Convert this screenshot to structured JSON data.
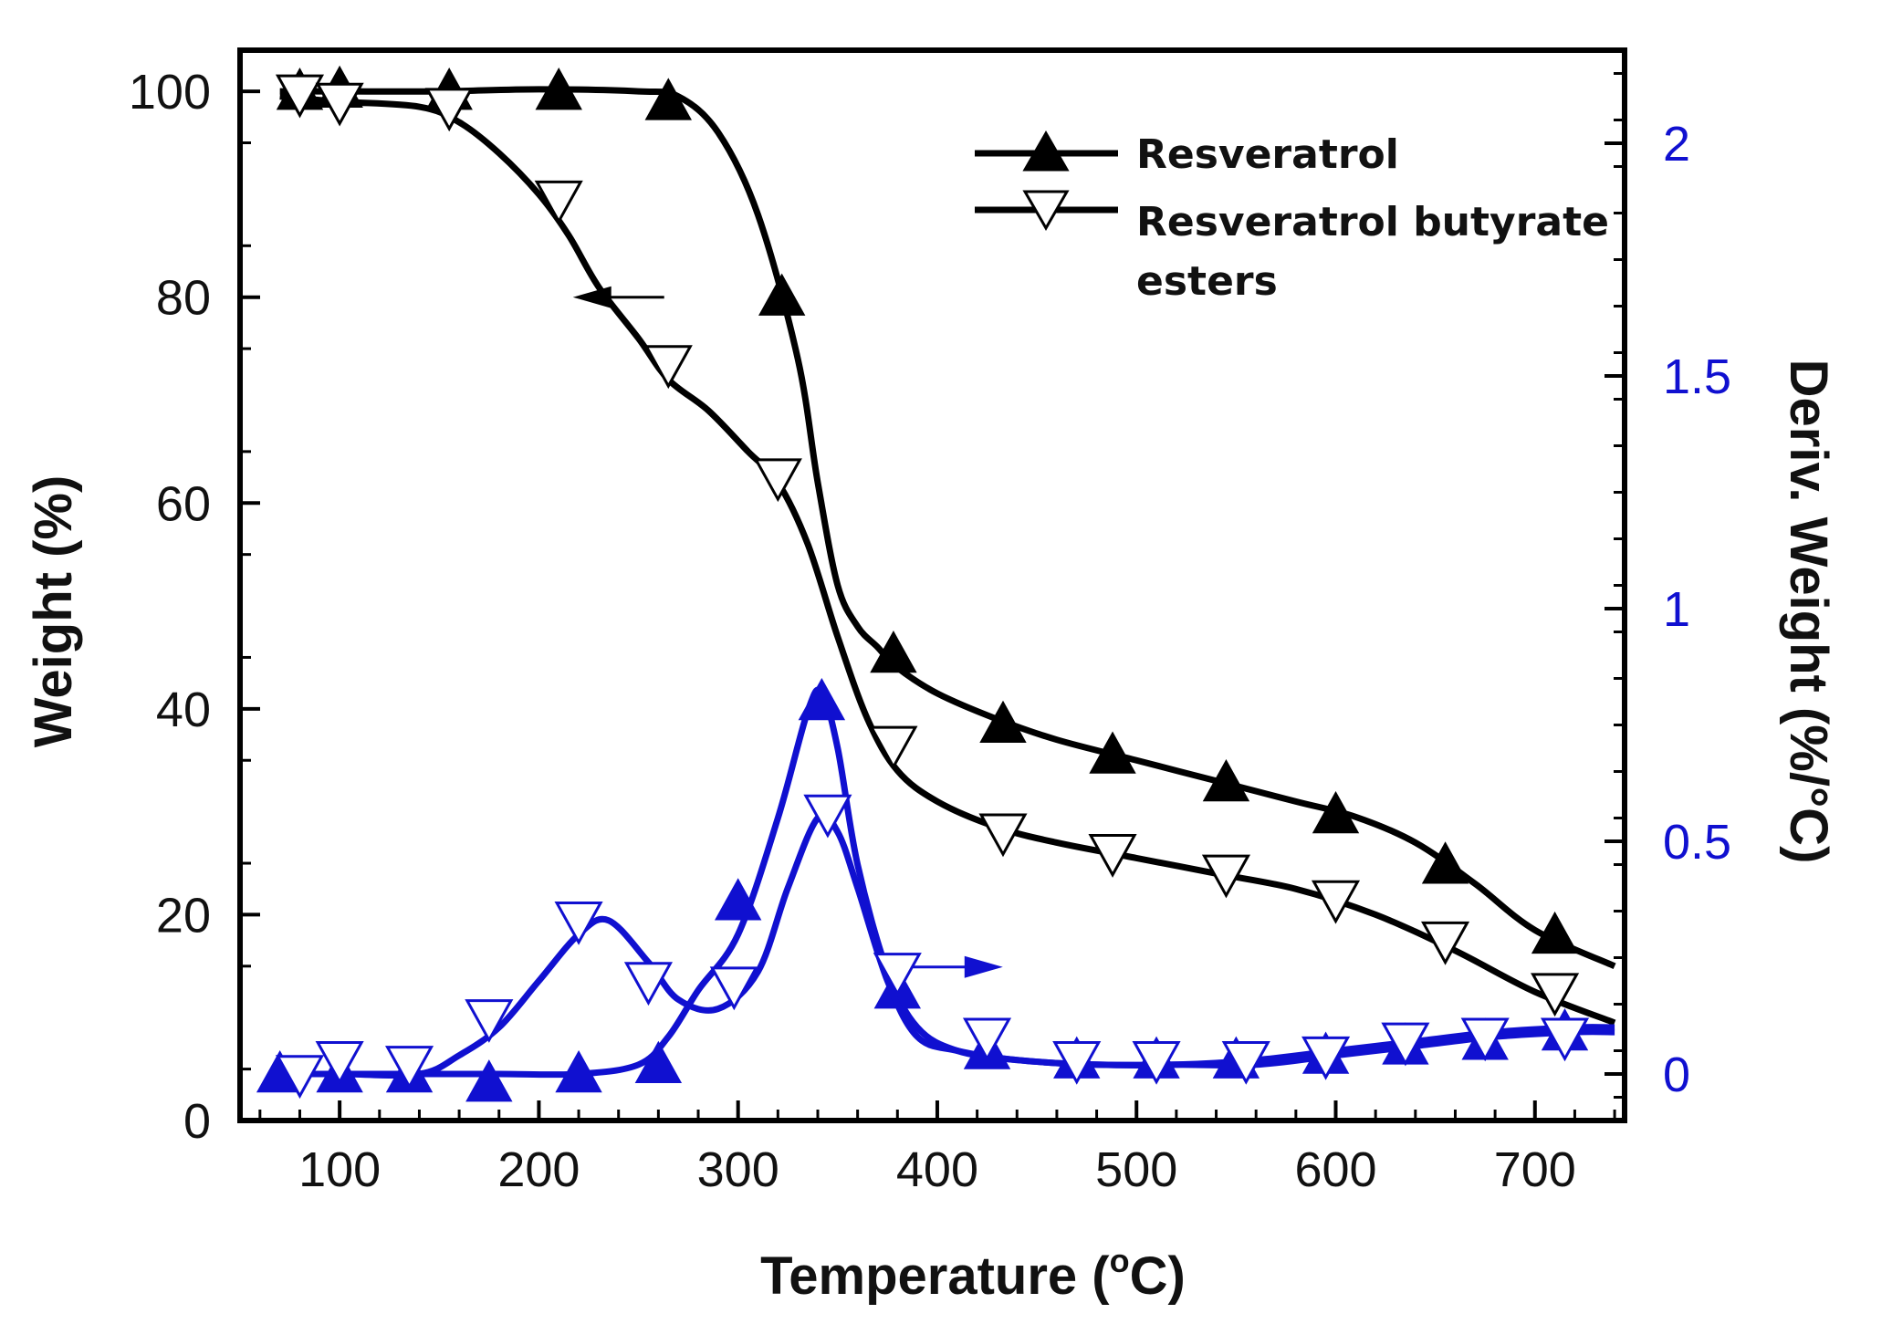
{
  "chart_data": {
    "type": "line",
    "title": "",
    "xlabel_prefix": "Temperature (",
    "xlabel_sup": "o",
    "xlabel_suffix": "C)",
    "ylabel": "Weight (%)",
    "y2label": "Deriv. Weight (%/°C)",
    "xlim": [
      50,
      745
    ],
    "ylim": [
      0,
      104
    ],
    "y2lim": [
      -0.1,
      2.2
    ],
    "xticks": [
      100,
      200,
      300,
      400,
      500,
      600,
      700
    ],
    "yticks": [
      0,
      20,
      40,
      60,
      80,
      100
    ],
    "y2ticks": [
      0,
      0.5,
      1,
      1.5,
      2
    ],
    "y2tick_labels": [
      "0",
      "0.5",
      "1",
      "1.5",
      "2"
    ],
    "grid": false,
    "legend_position": "top-right",
    "colors": {
      "weight": "#000000",
      "deriv": "#1010d0"
    },
    "legend": [
      {
        "label": "Resveratrol",
        "marker": "triangle-up-filled"
      },
      {
        "label_line1": "Resveratrol butyrate",
        "label_line2": "esters",
        "marker": "triangle-down-open"
      }
    ],
    "annotations": [
      {
        "type": "arrow",
        "direction": "left",
        "points_to_axis": "left",
        "at": [
          240,
          80
        ]
      },
      {
        "type": "arrow",
        "direction": "right",
        "points_to_axis": "right",
        "at": [
          410,
          0.23
        ]
      }
    ],
    "series": [
      {
        "name": "Resveratrol",
        "axis": "left",
        "marker": "triangle-up-filled",
        "x": [
          70,
          100,
          150,
          200,
          250,
          270,
          290,
          310,
          330,
          340,
          350,
          360,
          370,
          380,
          400,
          430,
          460,
          500,
          540,
          580,
          610,
          640,
          670,
          700,
          740
        ],
        "y": [
          100,
          100,
          100,
          100.2,
          100,
          99.5,
          96,
          88,
          74,
          62,
          52,
          48,
          46,
          44,
          41.5,
          39,
          37,
          35,
          33,
          31,
          29.5,
          27,
          23,
          18.5,
          15
        ],
        "marker_x": [
          80,
          100,
          155,
          210,
          265,
          322,
          378,
          433,
          488,
          545,
          600,
          655,
          710
        ],
        "marker_y": [
          100,
          100.2,
          100,
          100,
          99,
          80,
          45.3,
          38.5,
          35.5,
          32.8,
          29.7,
          24.8,
          18
        ]
      },
      {
        "name": "Resveratrol butyrate esters",
        "axis": "left",
        "marker": "triangle-down-open",
        "x": [
          70,
          100,
          140,
          160,
          180,
          200,
          215,
          230,
          250,
          265,
          285,
          305,
          320,
          335,
          350,
          365,
          380,
          400,
          430,
          460,
          500,
          540,
          580,
          620,
          660,
          700,
          740
        ],
        "y": [
          99.5,
          99,
          98.5,
          97,
          94,
          90,
          86,
          81,
          76,
          72,
          69,
          65,
          62,
          56,
          47,
          39,
          34,
          31,
          28.5,
          27,
          25.5,
          24,
          22.5,
          20,
          16.5,
          12.5,
          9.5
        ],
        "marker_x": [
          80,
          100,
          155,
          210,
          265,
          320,
          378,
          433,
          488,
          545,
          600,
          655,
          710
        ],
        "marker_y": [
          99.8,
          99,
          98.5,
          89.5,
          73.5,
          62.5,
          36.5,
          28,
          26,
          24,
          21.5,
          17.5,
          12.5
        ]
      },
      {
        "name": "Resveratrol (derivative)",
        "axis": "right",
        "marker": "triangle-up-filled",
        "x": [
          70,
          100,
          140,
          180,
          220,
          250,
          265,
          280,
          300,
          320,
          335,
          342,
          350,
          360,
          375,
          390,
          410,
          440,
          480,
          520,
          560,
          600,
          640,
          680,
          720,
          740
        ],
        "y": [
          0,
          0,
          0,
          0,
          0,
          0.02,
          0.08,
          0.18,
          0.3,
          0.55,
          0.78,
          0.82,
          0.7,
          0.45,
          0.22,
          0.1,
          0.05,
          0.03,
          0.02,
          0.02,
          0.03,
          0.05,
          0.07,
          0.09,
          0.1,
          0.1
        ],
        "marker_x": [
          70,
          100,
          135,
          175,
          220,
          260,
          300,
          342,
          380,
          425,
          470,
          510,
          550,
          595,
          635,
          675,
          715
        ],
        "marker_y": [
          0,
          0,
          0,
          -0.02,
          0,
          0.02,
          0.37,
          0.8,
          0.18,
          0.05,
          0.03,
          0.03,
          0.03,
          0.04,
          0.06,
          0.07,
          0.09
        ]
      },
      {
        "name": "Resveratrol butyrate esters (derivative)",
        "axis": "right",
        "marker": "triangle-down-open",
        "x": [
          70,
          100,
          140,
          160,
          180,
          200,
          220,
          235,
          255,
          270,
          290,
          310,
          325,
          340,
          350,
          360,
          375,
          390,
          410,
          440,
          480,
          520,
          560,
          600,
          640,
          680,
          720,
          740
        ],
        "y": [
          0,
          0,
          0,
          0.04,
          0.1,
          0.2,
          0.3,
          0.33,
          0.24,
          0.16,
          0.14,
          0.22,
          0.4,
          0.55,
          0.52,
          0.4,
          0.2,
          0.08,
          0.05,
          0.03,
          0.02,
          0.02,
          0.02,
          0.04,
          0.06,
          0.08,
          0.09,
          0.09
        ],
        "marker_x": [
          80,
          100,
          135,
          175,
          220,
          255,
          298,
          345,
          380,
          425,
          470,
          510,
          555,
          595,
          635,
          675,
          715
        ],
        "marker_y": [
          0,
          0.03,
          0.02,
          0.12,
          0.33,
          0.2,
          0.19,
          0.56,
          0.22,
          0.08,
          0.03,
          0.03,
          0.03,
          0.04,
          0.07,
          0.08,
          0.08
        ]
      }
    ]
  }
}
